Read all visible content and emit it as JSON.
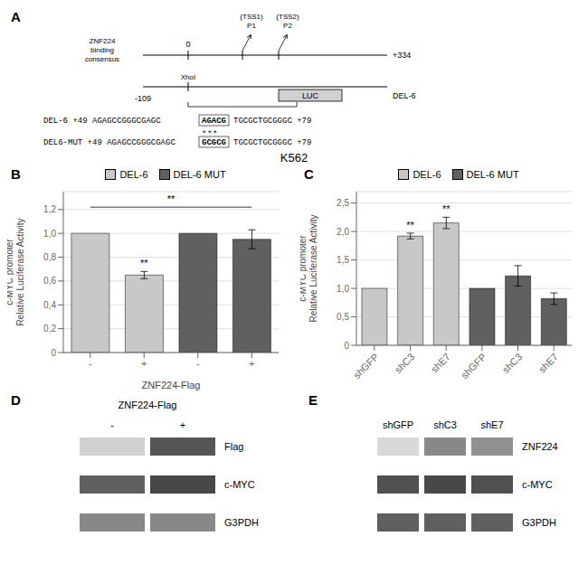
{
  "title": "K562",
  "chart_data": [
    {
      "type": "diagram",
      "title": "A",
      "annotations": [
        "ZNF224\nbinding\nconsensus",
        "0",
        "(TSS1)\nP1",
        "(TSS2)\nP2",
        "+334",
        "XhoI",
        "-109",
        "LUC",
        "DEL-6",
        "DEL-6  +49  AGAGCCGGGCGAGC",
        "AGACG",
        "TGCGCTGCGGGC  +79",
        "* * *",
        "DEL6-MUT  +49  AGAGCCGGGCGAGC",
        "GCGCG",
        "TGCGCTGCGGGC  +79"
      ]
    },
    {
      "type": "bar",
      "title": "B",
      "categories": [
        "-",
        "+",
        "-",
        "+"
      ],
      "series": [
        {
          "name": "DEL-6",
          "color": "#c8c8c8",
          "values": [
            1.0,
            0.65,
            null,
            null
          ],
          "errors": [
            0.0,
            0.03,
            null,
            null
          ]
        },
        {
          "name": "DEL-6 MUT",
          "color": "#606060",
          "values": [
            null,
            null,
            1.0,
            0.95
          ],
          "errors": [
            null,
            null,
            0.0,
            0.08
          ]
        }
      ],
      "xlabel": "ZNF224-Flag",
      "ylabel": "c-MYC promoter\nRelative Luciferase Activity",
      "ylim": [
        0,
        1.35
      ],
      "yticks": [
        0,
        {
          "value": 0.2,
          "label": "0,2"
        },
        {
          "value": 0.4,
          "label": "0,4"
        },
        {
          "value": 0.6,
          "label": "0,6"
        },
        {
          "value": 0.8,
          "label": "0,8"
        },
        {
          "value": 1.0,
          "label": "1,0"
        },
        {
          "value": 1.2,
          "label": "1,2"
        }
      ],
      "grid": true,
      "legend": "top",
      "annotations": [
        {
          "text": "**",
          "index": 1
        },
        {
          "text": "**",
          "span": [
            0,
            3
          ],
          "y": 1.22
        }
      ]
    },
    {
      "type": "bar",
      "title": "C",
      "categories": [
        "shGFP",
        "shC3",
        "shE7",
        "shGFP",
        "shC3",
        "shE7"
      ],
      "series": [
        {
          "name": "DEL-6",
          "color": "#c8c8c8",
          "values": [
            1.0,
            1.92,
            2.15,
            null,
            null,
            null
          ],
          "errors": [
            0.0,
            0.05,
            0.1,
            null,
            null,
            null
          ]
        },
        {
          "name": "DEL-6 MUT",
          "color": "#606060",
          "values": [
            null,
            null,
            null,
            1.0,
            1.22,
            0.82
          ],
          "errors": [
            null,
            null,
            null,
            0.0,
            0.18,
            0.1
          ]
        }
      ],
      "ylabel": "c-MYC promoter\nRelative Luciferase Activity",
      "ylim": [
        0,
        2.7
      ],
      "yticks": [
        0,
        {
          "value": 0.5,
          "label": "0,5"
        },
        {
          "value": 1.0,
          "label": "1,0"
        },
        {
          "value": 1.5,
          "label": "1,5"
        },
        {
          "value": 2.0,
          "label": "2,0"
        },
        {
          "value": 2.5,
          "label": "2,5"
        }
      ],
      "grid": true,
      "legend": "top",
      "annotations": [
        {
          "text": "**",
          "index": 1
        },
        {
          "text": "**",
          "index": 2
        }
      ]
    },
    {
      "type": "blot",
      "title": "D",
      "annotations": [
        "ZNF224-Flag"
      ],
      "categories": [
        "-",
        "+"
      ],
      "series": [
        {
          "name": "Flag",
          "colors": [
            "#d0d0d0",
            "#555555"
          ]
        },
        {
          "name": "c-MYC",
          "colors": [
            "#606060",
            "#484848"
          ]
        },
        {
          "name": "G3PDH",
          "colors": [
            "#888888",
            "#888888"
          ]
        }
      ]
    },
    {
      "type": "blot",
      "title": "E",
      "categories": [
        "shGFP",
        "shC3",
        "shE7"
      ],
      "series": [
        {
          "name": "ZNF224",
          "colors": [
            "#d8d8d8",
            "#888888",
            "#909090"
          ]
        },
        {
          "name": "c-MYC",
          "colors": [
            "#505050",
            "#484848",
            "#505050"
          ]
        },
        {
          "name": "G3PDH",
          "colors": [
            "#606060",
            "#606060",
            "#606060"
          ]
        }
      ]
    }
  ]
}
